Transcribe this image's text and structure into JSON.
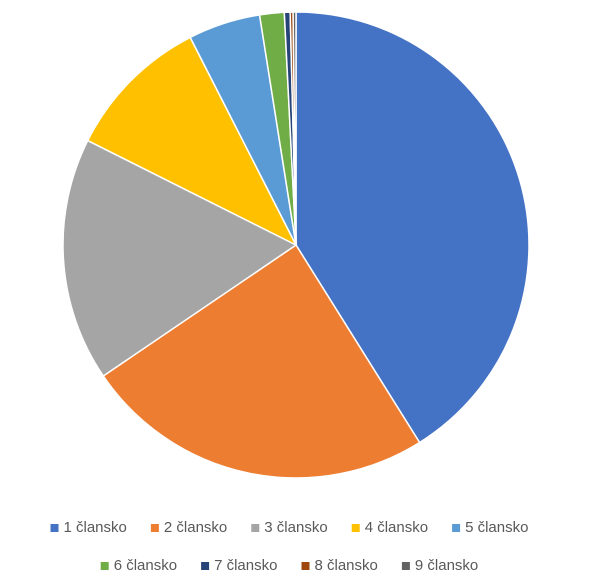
{
  "chart_data": {
    "type": "pie",
    "categories": [
      "1 člansko",
      "2 člansko",
      "3 člansko",
      "4 člansko",
      "5 člansko",
      "6 člansko",
      "7 člansko",
      "8 člansko",
      "9 člansko"
    ],
    "values": [
      41.1,
      24.4,
      16.9,
      10.1,
      5,
      1.7,
      0.4,
      0.2,
      0.2
    ],
    "colors": [
      "#4472c4",
      "#ed7d31",
      "#a5a5a5",
      "#ffc000",
      "#5b9bd5",
      "#70ad47",
      "#264478",
      "#9e480e",
      "#636363"
    ],
    "legend": "bottom"
  }
}
